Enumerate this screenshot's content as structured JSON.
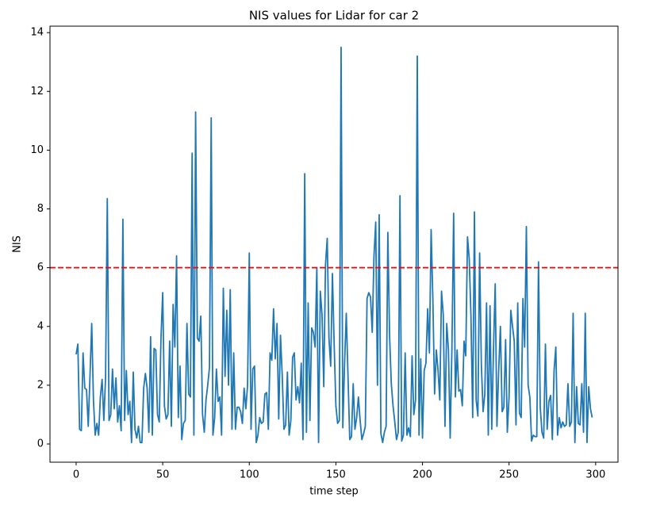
{
  "chart_data": {
    "type": "line",
    "title": "NIS values for Lidar for car 2",
    "xlabel": "time step",
    "ylabel": "NIS",
    "color": "#1f77b4",
    "threshold": 6,
    "threshold_color": "#ff0000",
    "xlim": [
      -15.1,
      312.9
    ],
    "ylim": [
      -0.62,
      14.22
    ],
    "xticks": [
      0,
      50,
      100,
      150,
      200,
      250,
      300
    ],
    "yticks": [
      0,
      2,
      4,
      6,
      8,
      10,
      12,
      14
    ],
    "x": [
      0,
      1,
      2,
      3,
      4,
      5,
      6,
      7,
      8,
      9,
      10,
      11,
      12,
      13,
      14,
      15,
      16,
      17,
      18,
      19,
      20,
      21,
      22,
      23,
      24,
      25,
      26,
      27,
      28,
      29,
      30,
      31,
      32,
      33,
      34,
      35,
      36,
      37,
      38,
      39,
      40,
      41,
      42,
      43,
      44,
      45,
      46,
      47,
      48,
      49,
      50,
      51,
      52,
      53,
      54,
      55,
      56,
      57,
      58,
      59,
      60,
      61,
      62,
      63,
      64,
      65,
      66,
      67,
      68,
      69,
      70,
      71,
      72,
      73,
      74,
      75,
      76,
      77,
      78,
      79,
      80,
      81,
      82,
      83,
      84,
      85,
      86,
      87,
      88,
      89,
      90,
      91,
      92,
      93,
      94,
      95,
      96,
      97,
      98,
      99,
      100,
      101,
      102,
      103,
      104,
      105,
      106,
      107,
      108,
      109,
      110,
      111,
      112,
      113,
      114,
      115,
      116,
      117,
      118,
      119,
      120,
      121,
      122,
      123,
      124,
      125,
      126,
      127,
      128,
      129,
      130,
      131,
      132,
      133,
      134,
      135,
      136,
      137,
      138,
      139,
      140,
      141,
      142,
      143,
      144,
      145,
      146,
      147,
      148,
      149,
      150,
      151,
      152,
      153,
      154,
      155,
      156,
      157,
      158,
      159,
      160,
      161,
      162,
      163,
      164,
      165,
      166,
      167,
      168,
      169,
      170,
      171,
      172,
      173,
      174,
      175,
      176,
      177,
      178,
      179,
      180,
      181,
      182,
      183,
      184,
      185,
      186,
      187,
      188,
      189,
      190,
      191,
      192,
      193,
      194,
      195,
      196,
      197,
      198,
      199,
      200,
      201,
      202,
      203,
      204,
      205,
      206,
      207,
      208,
      209,
      210,
      211,
      212,
      213,
      214,
      215,
      216,
      217,
      218,
      219,
      220,
      221,
      222,
      223,
      224,
      225,
      226,
      227,
      228,
      229,
      230,
      231,
      232,
      233,
      234,
      235,
      236,
      237,
      238,
      239,
      240,
      241,
      242,
      243,
      244,
      245,
      246,
      247,
      248,
      249,
      250,
      251,
      252,
      253,
      254,
      255,
      256,
      257,
      258,
      259,
      260,
      261,
      262,
      263,
      264,
      265,
      266,
      267,
      268,
      269,
      270,
      271,
      272,
      273,
      274,
      275,
      276,
      277,
      278,
      279,
      280,
      281,
      282,
      283,
      284,
      285,
      286,
      287,
      288,
      289,
      290,
      291,
      292,
      293,
      294,
      295,
      296,
      297,
      298
    ],
    "values": [
      3.05,
      3.4,
      0.5,
      0.45,
      3.1,
      1.9,
      1.85,
      0.6,
      2.3,
      4.1,
      1.5,
      0.3,
      0.7,
      0.3,
      1.6,
      2.2,
      0.8,
      2.25,
      8.35,
      0.8,
      1.0,
      2.55,
      1.2,
      2.25,
      0.75,
      1.3,
      0.45,
      7.65,
      0.8,
      2.5,
      1.0,
      1.45,
      0.05,
      2.45,
      0.5,
      0.2,
      0.6,
      0.05,
      0.05,
      1.9,
      2.4,
      1.9,
      0.4,
      3.65,
      0.3,
      3.25,
      3.2,
      1.0,
      0.75,
      3.6,
      5.15,
      1.3,
      0.85,
      1.0,
      3.5,
      0.6,
      4.75,
      3.3,
      6.4,
      0.9,
      2.65,
      0.15,
      0.7,
      0.8,
      4.1,
      1.7,
      1.6,
      9.9,
      0.3,
      11.3,
      3.6,
      3.5,
      4.35,
      1.0,
      0.4,
      1.5,
      2.0,
      2.6,
      11.1,
      0.3,
      0.9,
      2.55,
      1.45,
      1.6,
      0.3,
      5.3,
      2.3,
      4.55,
      2.0,
      5.25,
      0.5,
      3.1,
      0.5,
      1.25,
      1.25,
      1.1,
      0.7,
      1.9,
      1.2,
      2.0,
      6.5,
      0.5,
      2.55,
      2.65,
      0.05,
      0.3,
      0.9,
      0.7,
      0.75,
      1.7,
      1.75,
      0.5,
      3.1,
      2.85,
      4.6,
      2.9,
      4.1,
      0.85,
      3.7,
      2.35,
      0.5,
      0.65,
      2.45,
      0.3,
      0.8,
      2.95,
      3.1,
      1.5,
      1.95,
      1.4,
      2.75,
      0.15,
      9.2,
      0.4,
      4.8,
      0.8,
      3.95,
      3.8,
      3.3,
      6.0,
      0.05,
      5.2,
      4.4,
      1.95,
      6.1,
      7.0,
      3.6,
      2.65,
      5.8,
      3.4,
      1.3,
      0.7,
      0.8,
      13.5,
      0.55,
      2.7,
      4.45,
      2.3,
      0.15,
      0.25,
      2.05,
      0.5,
      0.9,
      1.6,
      0.8,
      0.15,
      0.35,
      0.6,
      4.95,
      5.15,
      5.0,
      3.8,
      6.4,
      7.55,
      2.0,
      7.8,
      0.35,
      0.05,
      0.4,
      0.6,
      7.2,
      3.7,
      2.05,
      1.3,
      0.75,
      0.15,
      0.4,
      8.45,
      0.1,
      0.3,
      3.1,
      0.3,
      0.55,
      0.25,
      3.0,
      1.0,
      1.5,
      13.2,
      0.3,
      2.9,
      0.2,
      2.5,
      2.75,
      4.6,
      3.1,
      7.3,
      4.9,
      1.7,
      3.2,
      2.5,
      1.5,
      5.2,
      4.4,
      0.6,
      4.1,
      3.2,
      0.2,
      3.25,
      7.85,
      1.6,
      3.2,
      1.8,
      1.85,
      1.3,
      3.5,
      3.0,
      7.05,
      6.3,
      4.35,
      0.9,
      7.9,
      1.5,
      0.95,
      6.5,
      2.7,
      1.1,
      1.7,
      4.8,
      0.3,
      4.7,
      0.5,
      3.2,
      5.45,
      0.6,
      2.5,
      4.0,
      1.1,
      1.25,
      3.55,
      0.4,
      1.6,
      4.55,
      4.0,
      3.5,
      0.65,
      4.8,
      1.05,
      0.9,
      4.95,
      3.3,
      7.4,
      2.0,
      1.6,
      0.1,
      0.3,
      0.25,
      0.25,
      6.2,
      1.25,
      0.4,
      0.2,
      3.4,
      0.5,
      1.45,
      1.65,
      0.15,
      2.5,
      3.3,
      0.3,
      0.9,
      0.55,
      0.75,
      0.6,
      0.65,
      2.05,
      0.6,
      0.75,
      4.45,
      0.05,
      1.95,
      0.7,
      0.65,
      2.05,
      0.4,
      4.45,
      0.05,
      1.95,
      1.2,
      0.9
    ]
  }
}
